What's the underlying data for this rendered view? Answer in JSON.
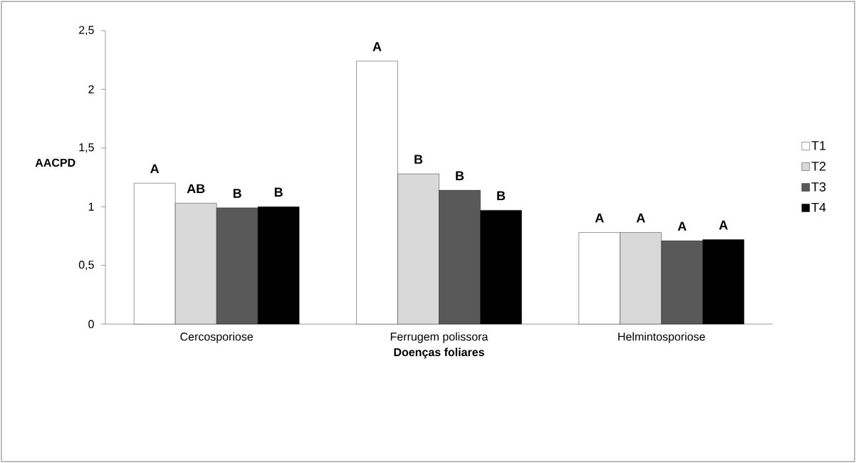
{
  "chart_data": {
    "type": "bar",
    "xlabel": "Doenças foliares",
    "ylabel": "AACPD",
    "categories": [
      "Cercosporiose",
      "Ferrugem polissora",
      "Helmintosporiose"
    ],
    "series": [
      {
        "name": "T1",
        "color": "#ffffff",
        "values": [
          1.2,
          2.24,
          0.78
        ],
        "value_labels": [
          "A",
          "A",
          "A"
        ]
      },
      {
        "name": "T2",
        "color": "#d9d9d9",
        "values": [
          1.03,
          1.28,
          0.78
        ],
        "value_labels": [
          "AB",
          "B",
          "A"
        ]
      },
      {
        "name": "T3",
        "color": "#595959",
        "values": [
          0.99,
          1.14,
          0.71
        ],
        "value_labels": [
          "B",
          "B",
          "A"
        ]
      },
      {
        "name": "T4",
        "color": "#000000",
        "values": [
          1.0,
          0.97,
          0.72
        ],
        "value_labels": [
          "B",
          "B",
          "A"
        ]
      }
    ],
    "ylim": [
      0,
      2.5
    ],
    "yticks": [
      {
        "value": 0,
        "label": "0"
      },
      {
        "value": 0.5,
        "label": "0,5"
      },
      {
        "value": 1,
        "label": "1"
      },
      {
        "value": 1.5,
        "label": "1,5"
      },
      {
        "value": 2,
        "label": "2"
      },
      {
        "value": 2.5,
        "label": "2,5"
      }
    ],
    "grid": false,
    "legend": "right"
  }
}
